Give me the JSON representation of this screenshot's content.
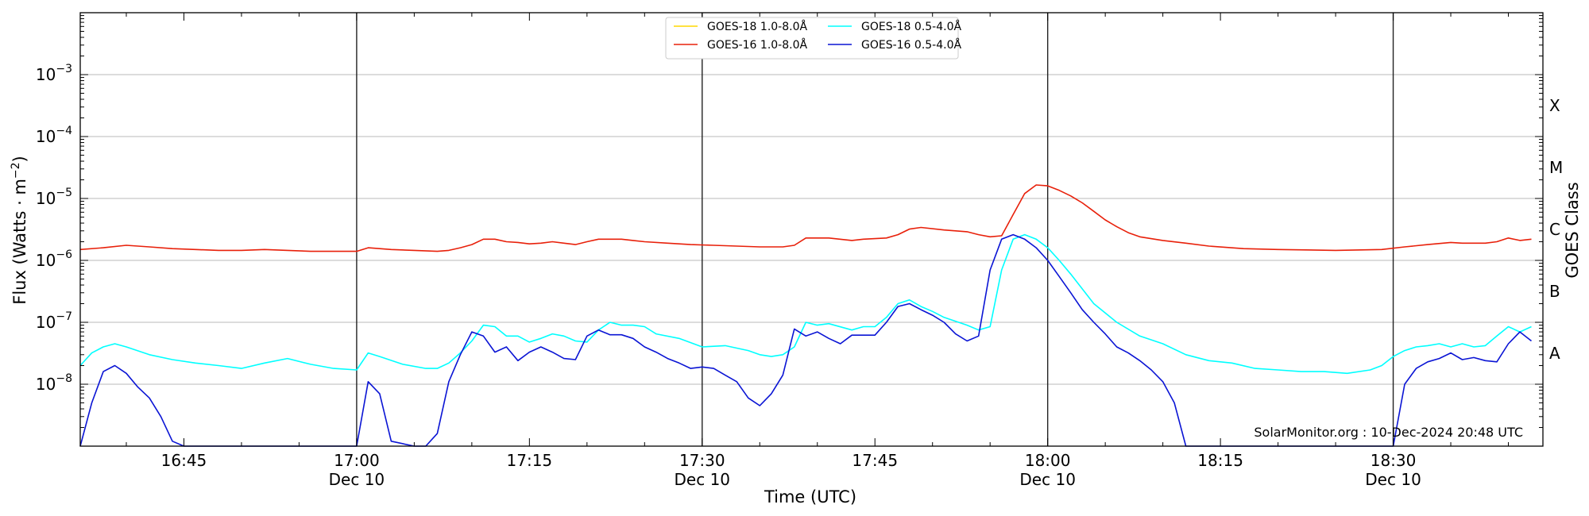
{
  "chart_data": {
    "type": "line",
    "xlabel": "Time (UTC)",
    "ylabel": "Flux (Watts · m",
    "ylabel_sup": "−2",
    "ylabel_close": ")",
    "y2label": "GOES Class",
    "yscale": "log",
    "xlim": [
      "16:36",
      "18:43"
    ],
    "ylim": [
      1e-09,
      0.01
    ],
    "grid": true,
    "legend_placement": "top-center",
    "watermark": "SolarMonitor.org : 10-Dec-2024 20:48 UTC",
    "x_ticks": [
      {
        "time": "16:45",
        "label": "16:45",
        "sub": ""
      },
      {
        "time": "17:00",
        "label": "17:00",
        "sub": "Dec 10"
      },
      {
        "time": "17:15",
        "label": "17:15",
        "sub": ""
      },
      {
        "time": "17:30",
        "label": "17:30",
        "sub": "Dec 10"
      },
      {
        "time": "17:45",
        "label": "17:45",
        "sub": ""
      },
      {
        "time": "18:00",
        "label": "18:00",
        "sub": "Dec 10"
      },
      {
        "time": "18:15",
        "label": "18:15",
        "sub": ""
      },
      {
        "time": "18:30",
        "label": "18:30",
        "sub": "Dec 10"
      }
    ],
    "vlines": [
      "17:00",
      "17:30",
      "18:00",
      "18:30"
    ],
    "y_ticks": [
      {
        "value": 1e-08,
        "base": "10",
        "exp": "−8"
      },
      {
        "value": 1e-07,
        "base": "10",
        "exp": "−7"
      },
      {
        "value": 1e-06,
        "base": "10",
        "exp": "−6"
      },
      {
        "value": 1e-05,
        "base": "10",
        "exp": "−5"
      },
      {
        "value": 0.0001,
        "base": "10",
        "exp": "−4"
      },
      {
        "value": 0.001,
        "base": "10",
        "exp": "−3"
      }
    ],
    "goes_classes": [
      {
        "label": "A",
        "value": 3.16e-08
      },
      {
        "label": "B",
        "value": 3.16e-07
      },
      {
        "label": "C",
        "value": 3.16e-06
      },
      {
        "label": "M",
        "value": 3.16e-05
      },
      {
        "label": "X",
        "value": 0.000316
      }
    ],
    "series": [
      {
        "name": "GOES-18 1.0-8.0Å",
        "color": "#ffd700",
        "x": [],
        "y": []
      },
      {
        "name": "GOES-16 1.0-8.0Å",
        "color": "#e8200a",
        "x": [
          "16:36",
          "16:38",
          "16:40",
          "16:42",
          "16:44",
          "16:46",
          "16:48",
          "16:50",
          "16:52",
          "16:54",
          "16:56",
          "16:58",
          "17:00",
          "17:01",
          "17:03",
          "17:05",
          "17:07",
          "17:08",
          "17:09",
          "17:10",
          "17:11",
          "17:12",
          "17:13",
          "17:14",
          "17:15",
          "17:16",
          "17:17",
          "17:18",
          "17:19",
          "17:20",
          "17:21",
          "17:22",
          "17:23",
          "17:24",
          "17:25",
          "17:27",
          "17:29",
          "17:31",
          "17:33",
          "17:35",
          "17:37",
          "17:38",
          "17:39",
          "17:41",
          "17:43",
          "17:44",
          "17:46",
          "17:47",
          "17:48",
          "17:49",
          "17:51",
          "17:53",
          "17:54",
          "17:55",
          "17:56",
          "17:57",
          "17:58",
          "17:59",
          "18:00",
          "18:01",
          "18:02",
          "18:03",
          "18:04",
          "18:05",
          "18:06",
          "18:07",
          "18:08",
          "18:10",
          "18:12",
          "18:14",
          "18:17",
          "18:20",
          "18:25",
          "18:29",
          "18:31",
          "18:33",
          "18:35",
          "18:36",
          "18:37",
          "18:38",
          "18:39",
          "18:40",
          "18:41",
          "18:42"
        ],
        "y": [
          1.5e-06,
          1.6e-06,
          1.75e-06,
          1.65e-06,
          1.55e-06,
          1.5e-06,
          1.45e-06,
          1.45e-06,
          1.5e-06,
          1.45e-06,
          1.4e-06,
          1.4e-06,
          1.4e-06,
          1.6e-06,
          1.5e-06,
          1.45e-06,
          1.4e-06,
          1.45e-06,
          1.6e-06,
          1.8e-06,
          2.2e-06,
          2.2e-06,
          2e-06,
          1.95e-06,
          1.85e-06,
          1.9e-06,
          2e-06,
          1.9e-06,
          1.8e-06,
          2e-06,
          2.2e-06,
          2.2e-06,
          2.2e-06,
          2.1e-06,
          2e-06,
          1.9e-06,
          1.8e-06,
          1.75e-06,
          1.7e-06,
          1.65e-06,
          1.65e-06,
          1.75e-06,
          2.3e-06,
          2.3e-06,
          2.1e-06,
          2.2e-06,
          2.3e-06,
          2.6e-06,
          3.2e-06,
          3.4e-06,
          3.1e-06,
          2.9e-06,
          2.6e-06,
          2.4e-06,
          2.5e-06,
          5.5e-06,
          1.2e-05,
          1.65e-05,
          1.6e-05,
          1.35e-05,
          1.1e-05,
          8.5e-06,
          6.2e-06,
          4.5e-06,
          3.5e-06,
          2.8e-06,
          2.4e-06,
          2.1e-06,
          1.9e-06,
          1.7e-06,
          1.55e-06,
          1.5e-06,
          1.45e-06,
          1.5e-06,
          1.65e-06,
          1.8e-06,
          1.95e-06,
          1.9e-06,
          1.9e-06,
          1.9e-06,
          2e-06,
          2.3e-06,
          2.1e-06,
          2.2e-06
        ]
      },
      {
        "name": "GOES-18 0.5-4.0Å",
        "color": "#00ffff",
        "x": [
          "16:36",
          "16:37",
          "16:38",
          "16:39",
          "16:40",
          "16:42",
          "16:44",
          "16:46",
          "16:48",
          "16:50",
          "16:52",
          "16:54",
          "16:56",
          "16:58",
          "17:00",
          "17:01",
          "17:02",
          "17:04",
          "17:06",
          "17:07",
          "17:08",
          "17:09",
          "17:10",
          "17:11",
          "17:12",
          "17:13",
          "17:14",
          "17:15",
          "17:16",
          "17:17",
          "17:18",
          "17:19",
          "17:20",
          "17:21",
          "17:22",
          "17:23",
          "17:24",
          "17:25",
          "17:26",
          "17:28",
          "17:30",
          "17:32",
          "17:34",
          "17:35",
          "17:36",
          "17:37",
          "17:38",
          "17:39",
          "17:40",
          "17:41",
          "17:43",
          "17:44",
          "17:45",
          "17:46",
          "17:47",
          "17:48",
          "17:49",
          "17:50",
          "17:51",
          "17:53",
          "17:54",
          "17:55",
          "17:56",
          "17:57",
          "17:58",
          "17:59",
          "18:00",
          "18:01",
          "18:02",
          "18:04",
          "18:06",
          "18:08",
          "18:10",
          "18:12",
          "18:14",
          "18:16",
          "18:18",
          "18:20",
          "18:22",
          "18:24",
          "18:26",
          "18:28",
          "18:29",
          "18:30",
          "18:31",
          "18:32",
          "18:33",
          "18:34",
          "18:35",
          "18:36",
          "18:37",
          "18:38",
          "18:39",
          "18:40",
          "18:41",
          "18:42"
        ],
        "y": [
          2e-08,
          3.2e-08,
          4e-08,
          4.5e-08,
          4e-08,
          3e-08,
          2.5e-08,
          2.2e-08,
          2e-08,
          1.8e-08,
          2.2e-08,
          2.6e-08,
          2.1e-08,
          1.8e-08,
          1.7e-08,
          3.2e-08,
          2.8e-08,
          2.1e-08,
          1.8e-08,
          1.8e-08,
          2.2e-08,
          3.2e-08,
          5e-08,
          9e-08,
          8.5e-08,
          6e-08,
          6e-08,
          4.8e-08,
          5.5e-08,
          6.5e-08,
          6e-08,
          5e-08,
          4.8e-08,
          7.5e-08,
          1e-07,
          9e-08,
          9e-08,
          8.5e-08,
          6.5e-08,
          5.5e-08,
          4e-08,
          4.2e-08,
          3.5e-08,
          3e-08,
          2.8e-08,
          3e-08,
          4e-08,
          1e-07,
          9e-08,
          9.5e-08,
          7.5e-08,
          8.5e-08,
          8.5e-08,
          1.2e-07,
          2e-07,
          2.3e-07,
          1.8e-07,
          1.5e-07,
          1.2e-07,
          9e-08,
          7.5e-08,
          8.5e-08,
          7e-07,
          2.2e-06,
          2.6e-06,
          2.2e-06,
          1.6e-06,
          1e-06,
          6e-07,
          2e-07,
          1e-07,
          6e-08,
          4.5e-08,
          3e-08,
          2.4e-08,
          2.2e-08,
          1.8e-08,
          1.7e-08,
          1.6e-08,
          1.6e-08,
          1.5e-08,
          1.7e-08,
          2e-08,
          2.8e-08,
          3.5e-08,
          4e-08,
          4.2e-08,
          4.5e-08,
          4e-08,
          4.5e-08,
          4e-08,
          4.2e-08,
          6e-08,
          8.5e-08,
          7e-08,
          8.5e-08
        ]
      },
      {
        "name": "GOES-16 0.5-4.0Å",
        "color": "#0a14d4",
        "x": [
          "16:36",
          "16:37",
          "16:38",
          "16:39",
          "16:40",
          "16:41",
          "16:42",
          "16:43",
          "16:44",
          "16:45",
          "17:00",
          "17:01",
          "17:02",
          "17:03",
          "17:05",
          "17:06",
          "17:07",
          "17:08",
          "17:09",
          "17:10",
          "17:11",
          "17:12",
          "17:13",
          "17:14",
          "17:15",
          "17:16",
          "17:17",
          "17:18",
          "17:19",
          "17:20",
          "17:21",
          "17:22",
          "17:23",
          "17:24",
          "17:25",
          "17:26",
          "17:27",
          "17:28",
          "17:29",
          "17:30",
          "17:31",
          "17:32",
          "17:33",
          "17:34",
          "17:35",
          "17:36",
          "17:37",
          "17:38",
          "17:39",
          "17:40",
          "17:41",
          "17:42",
          "17:43",
          "17:44",
          "17:45",
          "17:46",
          "17:47",
          "17:48",
          "17:49",
          "17:50",
          "17:51",
          "17:52",
          "17:53",
          "17:54",
          "17:55",
          "17:56",
          "17:57",
          "17:58",
          "17:59",
          "18:00",
          "18:01",
          "18:02",
          "18:03",
          "18:04",
          "18:05",
          "18:06",
          "18:07",
          "18:08",
          "18:09",
          "18:10",
          "18:11",
          "18:12",
          "18:13",
          "18:30",
          "18:31",
          "18:32",
          "18:33",
          "18:34",
          "18:35",
          "18:36",
          "18:37",
          "18:38",
          "18:39",
          "18:40",
          "18:41",
          "18:42"
        ],
        "y": [
          1e-09,
          5e-09,
          1.6e-08,
          2e-08,
          1.5e-08,
          9e-09,
          6e-09,
          3e-09,
          1.2e-09,
          1e-09,
          1e-09,
          1.1e-08,
          7e-09,
          1.2e-09,
          1e-09,
          1e-09,
          1.6e-09,
          1.1e-08,
          3e-08,
          7e-08,
          6e-08,
          3.3e-08,
          4e-08,
          2.4e-08,
          3.3e-08,
          4e-08,
          3.3e-08,
          2.6e-08,
          2.5e-08,
          6e-08,
          7.5e-08,
          6.3e-08,
          6.3e-08,
          5.5e-08,
          4e-08,
          3.3e-08,
          2.6e-08,
          2.2e-08,
          1.8e-08,
          1.9e-08,
          1.8e-08,
          1.4e-08,
          1.1e-08,
          6e-09,
          4.5e-09,
          7e-09,
          1.4e-08,
          7.8e-08,
          6e-08,
          7e-08,
          5.5e-08,
          4.5e-08,
          6.2e-08,
          6.2e-08,
          6.2e-08,
          1e-07,
          1.8e-07,
          2e-07,
          1.6e-07,
          1.3e-07,
          1e-07,
          6.5e-08,
          5e-08,
          6e-08,
          7e-07,
          2.2e-06,
          2.6e-06,
          2.2e-06,
          1.6e-06,
          1e-06,
          5.5e-07,
          3e-07,
          1.6e-07,
          1e-07,
          6.5e-08,
          4e-08,
          3.2e-08,
          2.4e-08,
          1.7e-08,
          1.1e-08,
          5e-09,
          1e-09,
          1e-09,
          1e-09,
          1e-08,
          1.8e-08,
          2.3e-08,
          2.6e-08,
          3.2e-08,
          2.5e-08,
          2.7e-08,
          2.4e-08,
          2.3e-08,
          4.5e-08,
          7e-08,
          5e-08
        ]
      }
    ]
  }
}
